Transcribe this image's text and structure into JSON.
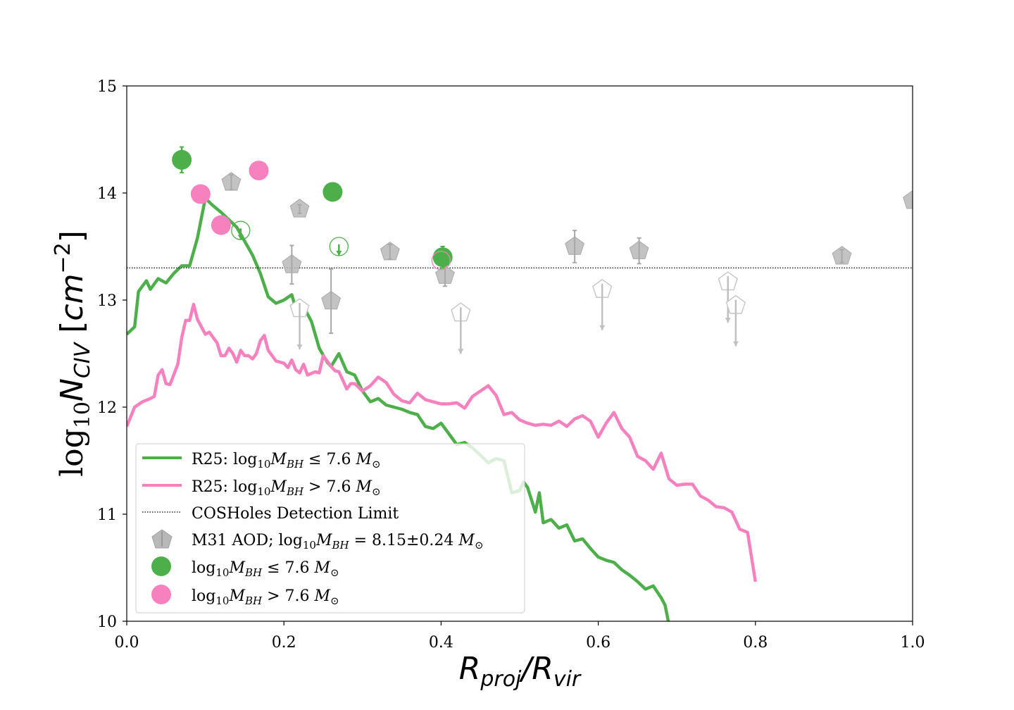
{
  "chart_data": {
    "type": "line",
    "xlabel": "R_proj/R_vir",
    "ylabel": "log10 N_CIV [cm^-2]",
    "xlim": [
      0.0,
      1.0
    ],
    "ylim": [
      10,
      15
    ],
    "xticks": [
      "0.0",
      "0.2",
      "0.4",
      "0.6",
      "0.8",
      "1.0"
    ],
    "yticks": [
      "10",
      "11",
      "12",
      "13",
      "14",
      "15"
    ],
    "grid": false,
    "legend_position": "lower-left",
    "detection_limit": 13.3,
    "colors": {
      "green": "#4daf4a",
      "pink": "#f781bf",
      "gray": "#b8b8b8"
    },
    "series": [
      {
        "name": "R25: log10 M_BH ≤ 7.6 M☉",
        "kind": "line",
        "color": "#4daf4a",
        "x": [
          0.0,
          0.01,
          0.015,
          0.025,
          0.03,
          0.04,
          0.05,
          0.06,
          0.07,
          0.08,
          0.09,
          0.1,
          0.11,
          0.12,
          0.13,
          0.14,
          0.15,
          0.16,
          0.17,
          0.18,
          0.19,
          0.2,
          0.21,
          0.215,
          0.225,
          0.235,
          0.245,
          0.255,
          0.26,
          0.27,
          0.28,
          0.29,
          0.3,
          0.31,
          0.32,
          0.33,
          0.34,
          0.35,
          0.36,
          0.37,
          0.38,
          0.39,
          0.4,
          0.41,
          0.42,
          0.43,
          0.44,
          0.45,
          0.46,
          0.47,
          0.48,
          0.49,
          0.5,
          0.505,
          0.51,
          0.52,
          0.525,
          0.53,
          0.54,
          0.55,
          0.56,
          0.57,
          0.58,
          0.59,
          0.6,
          0.61,
          0.62,
          0.63,
          0.64,
          0.65,
          0.66,
          0.67,
          0.68,
          0.685,
          0.69,
          0.7,
          0.71
        ],
        "y": [
          12.68,
          12.75,
          13.08,
          13.18,
          13.1,
          13.2,
          13.16,
          13.25,
          13.32,
          13.32,
          13.58,
          13.95,
          13.88,
          13.82,
          13.75,
          13.68,
          13.55,
          13.42,
          13.25,
          13.03,
          12.97,
          13.0,
          13.05,
          12.92,
          12.94,
          12.8,
          12.55,
          12.42,
          12.38,
          12.5,
          12.33,
          12.3,
          12.15,
          12.05,
          12.08,
          12.02,
          12.0,
          11.98,
          11.95,
          11.93,
          11.82,
          11.8,
          11.85,
          11.75,
          11.65,
          11.67,
          11.62,
          11.55,
          11.48,
          11.52,
          11.5,
          11.2,
          11.22,
          11.3,
          11.25,
          11.02,
          11.2,
          10.92,
          10.95,
          10.87,
          10.9,
          10.75,
          10.77,
          10.68,
          10.6,
          10.57,
          10.55,
          10.48,
          10.43,
          10.37,
          10.3,
          10.33,
          10.22,
          10.15,
          9.97,
          9.97,
          9.97
        ]
      },
      {
        "name": "R25: log10 M_BH > 7.6 M☉",
        "kind": "line",
        "color": "#f781bf",
        "x": [
          0.0,
          0.01,
          0.02,
          0.03,
          0.035,
          0.04,
          0.045,
          0.05,
          0.055,
          0.065,
          0.07,
          0.075,
          0.08,
          0.085,
          0.09,
          0.1,
          0.105,
          0.115,
          0.12,
          0.125,
          0.13,
          0.135,
          0.14,
          0.145,
          0.15,
          0.155,
          0.16,
          0.165,
          0.17,
          0.175,
          0.18,
          0.19,
          0.2,
          0.205,
          0.21,
          0.215,
          0.22,
          0.225,
          0.23,
          0.24,
          0.245,
          0.25,
          0.26,
          0.265,
          0.27,
          0.28,
          0.285,
          0.29,
          0.3,
          0.31,
          0.32,
          0.33,
          0.34,
          0.35,
          0.36,
          0.37,
          0.38,
          0.39,
          0.4,
          0.41,
          0.42,
          0.43,
          0.44,
          0.45,
          0.46,
          0.47,
          0.48,
          0.49,
          0.5,
          0.51,
          0.52,
          0.53,
          0.54,
          0.55,
          0.56,
          0.57,
          0.58,
          0.59,
          0.6,
          0.61,
          0.62,
          0.63,
          0.64,
          0.65,
          0.66,
          0.67,
          0.68,
          0.69,
          0.7,
          0.71,
          0.72,
          0.73,
          0.74,
          0.75,
          0.76,
          0.77,
          0.78,
          0.79,
          0.8
        ],
        "y": [
          11.82,
          12.0,
          12.05,
          12.08,
          12.1,
          12.3,
          12.35,
          12.22,
          12.21,
          12.4,
          12.65,
          12.81,
          12.81,
          12.96,
          12.82,
          12.68,
          12.7,
          12.6,
          12.48,
          12.48,
          12.55,
          12.5,
          12.42,
          12.53,
          12.48,
          12.48,
          12.45,
          12.5,
          12.62,
          12.67,
          12.53,
          12.43,
          12.41,
          12.37,
          12.44,
          12.35,
          12.32,
          12.4,
          12.3,
          12.33,
          12.32,
          12.48,
          12.38,
          12.34,
          12.33,
          12.17,
          12.22,
          12.22,
          12.15,
          12.2,
          12.28,
          12.23,
          12.12,
          12.06,
          12.04,
          12.13,
          12.07,
          12.05,
          12.03,
          12.03,
          12.04,
          11.99,
          12.1,
          12.15,
          12.2,
          12.11,
          11.93,
          11.95,
          11.88,
          11.85,
          11.83,
          11.84,
          11.83,
          11.87,
          11.82,
          11.89,
          11.92,
          11.87,
          11.72,
          11.85,
          11.95,
          11.8,
          11.72,
          11.54,
          11.5,
          11.42,
          11.57,
          11.33,
          11.27,
          11.28,
          11.28,
          11.17,
          11.13,
          11.07,
          11.06,
          11.02,
          10.86,
          10.83,
          10.37
        ]
      },
      {
        "name": "COSHoles Detection Limit",
        "kind": "hline",
        "color": "#000000",
        "y": 13.3
      },
      {
        "name": "M31 AOD; log10 M_BH = 8.15±0.24 M☉",
        "kind": "pentagon",
        "color": "#b8b8b8",
        "points": [
          {
            "x": 0.133,
            "y": 14.1,
            "err": 0.07,
            "upper_limit": false
          },
          {
            "x": 0.22,
            "y": 13.85,
            "err": 0.04,
            "upper_limit": false
          },
          {
            "x": 0.21,
            "y": 13.33,
            "err": 0.18,
            "upper_limit": false
          },
          {
            "x": 0.26,
            "y": 12.99,
            "err": 0.3,
            "upper_limit": false
          },
          {
            "x": 0.335,
            "y": 13.45,
            "err": 0.07,
            "upper_limit": false
          },
          {
            "x": 0.405,
            "y": 13.23,
            "err": 0.1,
            "upper_limit": false
          },
          {
            "x": 0.57,
            "y": 13.5,
            "err": 0.15,
            "upper_limit": false
          },
          {
            "x": 0.652,
            "y": 13.46,
            "err": 0.12,
            "upper_limit": false
          },
          {
            "x": 0.91,
            "y": 13.41,
            "err": 0.06,
            "upper_limit": false
          },
          {
            "x": 1.0,
            "y": 13.93,
            "err": 0.0,
            "upper_limit": false
          },
          {
            "x": 0.22,
            "y": 12.92,
            "upper_limit": true
          },
          {
            "x": 0.425,
            "y": 12.88,
            "upper_limit": true
          },
          {
            "x": 0.605,
            "y": 13.1,
            "upper_limit": true
          },
          {
            "x": 0.765,
            "y": 13.17,
            "upper_limit": true
          },
          {
            "x": 0.775,
            "y": 12.95,
            "upper_limit": true
          }
        ]
      },
      {
        "name": "log10 M_BH ≤ 7.6 M☉",
        "kind": "circle",
        "color": "#4daf4a",
        "points": [
          {
            "x": 0.07,
            "y": 14.31,
            "err": 0.12,
            "upper_limit": false
          },
          {
            "x": 0.262,
            "y": 14.01,
            "err": 0.0,
            "upper_limit": false
          },
          {
            "x": 0.402,
            "y": 13.4,
            "err": 0.1,
            "upper_limit": false
          },
          {
            "x": 0.145,
            "y": 13.65,
            "upper_limit": true
          },
          {
            "x": 0.27,
            "y": 13.5,
            "upper_limit": true
          }
        ]
      },
      {
        "name": "log10 M_BH > 7.6 M☉",
        "kind": "circle",
        "color": "#f781bf",
        "points": [
          {
            "x": 0.094,
            "y": 13.99,
            "upper_limit": false
          },
          {
            "x": 0.12,
            "y": 13.7,
            "upper_limit": false
          },
          {
            "x": 0.168,
            "y": 14.21,
            "upper_limit": false
          },
          {
            "x": 0.4,
            "y": 13.37,
            "upper_limit": true
          }
        ]
      }
    ]
  }
}
